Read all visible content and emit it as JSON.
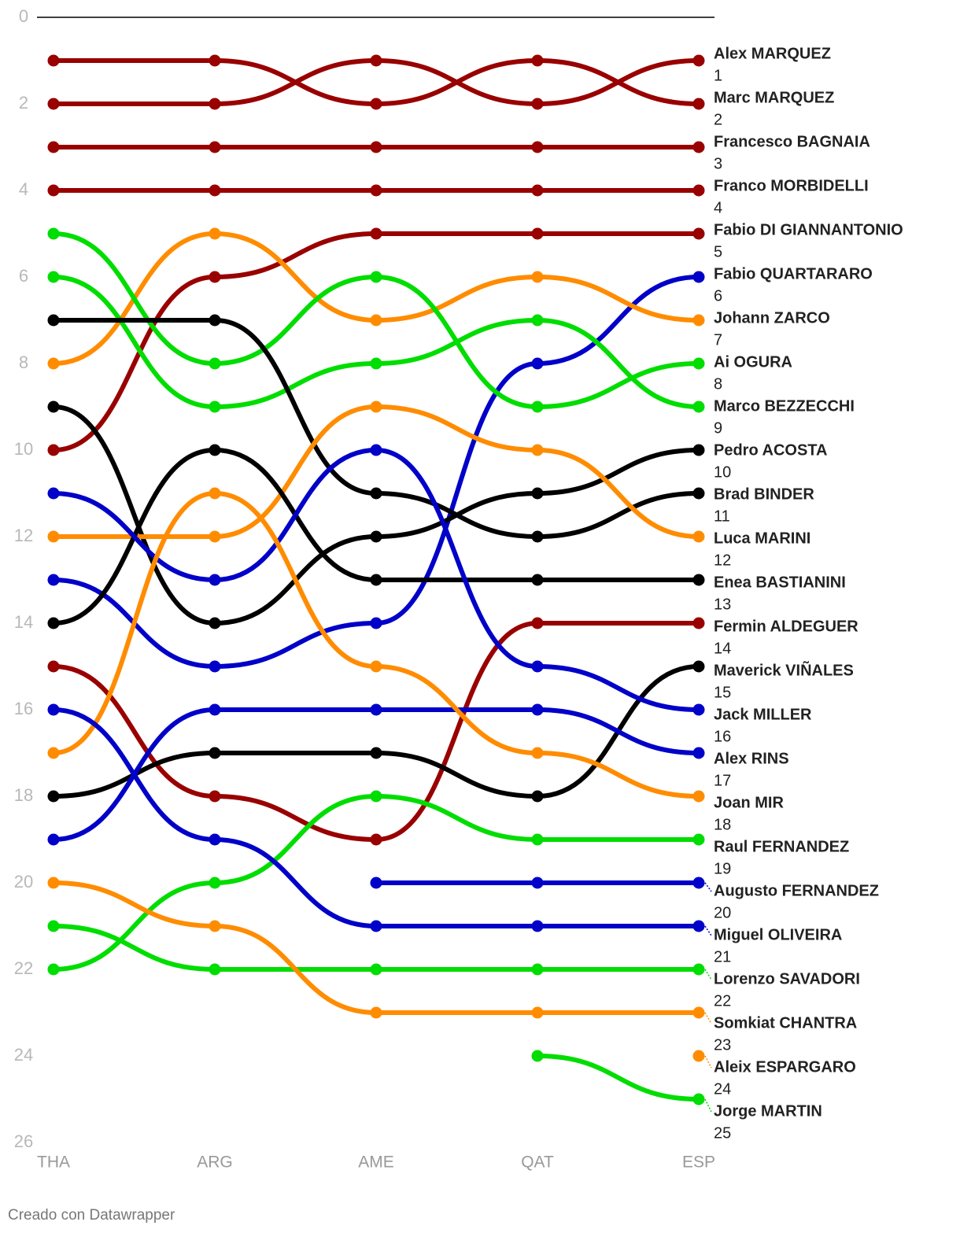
{
  "chart_data": {
    "type": "bump",
    "categories": [
      "THA",
      "ARG",
      "AME",
      "QAT",
      "ESP"
    ],
    "ylim": [
      0,
      26
    ],
    "yticks": [
      0,
      2,
      4,
      6,
      8,
      10,
      12,
      14,
      16,
      18,
      20,
      22,
      24,
      26
    ],
    "y_inverted": true,
    "footer": "Creado con Datawrapper",
    "series": [
      {
        "name": "Alex MARQUEZ",
        "color": "#990000",
        "values": [
          2,
          2,
          1,
          2,
          1
        ]
      },
      {
        "name": "Marc MARQUEZ",
        "color": "#990000",
        "values": [
          1,
          1,
          2,
          1,
          2
        ]
      },
      {
        "name": "Francesco BAGNAIA",
        "color": "#990000",
        "values": [
          3,
          3,
          3,
          3,
          3
        ]
      },
      {
        "name": "Franco MORBIDELLI",
        "color": "#990000",
        "values": [
          4,
          4,
          4,
          4,
          4
        ]
      },
      {
        "name": "Fabio DI GIANNANTONIO",
        "color": "#990000",
        "values": [
          10,
          6,
          5,
          5,
          5
        ]
      },
      {
        "name": "Fabio QUARTARARO",
        "color": "#0000c8",
        "values": [
          13,
          15,
          14,
          8,
          6
        ]
      },
      {
        "name": "Johann ZARCO",
        "color": "#ff8c00",
        "values": [
          8,
          5,
          7,
          6,
          7
        ]
      },
      {
        "name": "Ai OGURA",
        "color": "#00dd00",
        "values": [
          5,
          8,
          6,
          9,
          8
        ]
      },
      {
        "name": "Marco BEZZECCHI",
        "color": "#00dd00",
        "values": [
          6,
          9,
          8,
          7,
          9
        ]
      },
      {
        "name": "Pedro ACOSTA",
        "color": "#000000",
        "values": [
          9,
          14,
          12,
          11,
          10
        ]
      },
      {
        "name": "Brad BINDER",
        "color": "#000000",
        "values": [
          7,
          7,
          11,
          12,
          11
        ]
      },
      {
        "name": "Luca MARINI",
        "color": "#ff8c00",
        "values": [
          12,
          12,
          9,
          10,
          12
        ]
      },
      {
        "name": "Enea BASTIANINI",
        "color": "#000000",
        "values": [
          14,
          10,
          13,
          13,
          13
        ]
      },
      {
        "name": "Fermin ALDEGUER",
        "color": "#990000",
        "values": [
          15,
          18,
          19,
          14,
          14
        ]
      },
      {
        "name": "Maverick VIÑALES",
        "color": "#000000",
        "values": [
          18,
          17,
          17,
          18,
          15
        ]
      },
      {
        "name": "Jack MILLER",
        "color": "#0000c8",
        "values": [
          11,
          13,
          10,
          15,
          16
        ]
      },
      {
        "name": "Alex RINS",
        "color": "#0000c8",
        "values": [
          19,
          16,
          16,
          16,
          17
        ]
      },
      {
        "name": "Joan MIR",
        "color": "#ff8c00",
        "values": [
          17,
          11,
          15,
          17,
          18
        ]
      },
      {
        "name": "Raul FERNANDEZ",
        "color": "#00dd00",
        "values": [
          22,
          20,
          18,
          19,
          19
        ]
      },
      {
        "name": "Augusto FERNANDEZ",
        "color": "#0000c8",
        "values": [
          null,
          null,
          20,
          20,
          20
        ]
      },
      {
        "name": "Miguel OLIVEIRA",
        "color": "#0000c8",
        "values": [
          16,
          19,
          21,
          21,
          21
        ]
      },
      {
        "name": "Lorenzo SAVADORI",
        "color": "#00dd00",
        "values": [
          21,
          22,
          22,
          22,
          22
        ]
      },
      {
        "name": "Somkiat CHANTRA",
        "color": "#ff8c00",
        "values": [
          20,
          21,
          23,
          23,
          23
        ]
      },
      {
        "name": "Aleix ESPARGARO",
        "color": "#ff8c00",
        "values": [
          null,
          null,
          null,
          null,
          24
        ]
      },
      {
        "name": "Jorge MARTIN",
        "color": "#00dd00",
        "values": [
          null,
          null,
          null,
          24,
          25
        ]
      }
    ]
  }
}
